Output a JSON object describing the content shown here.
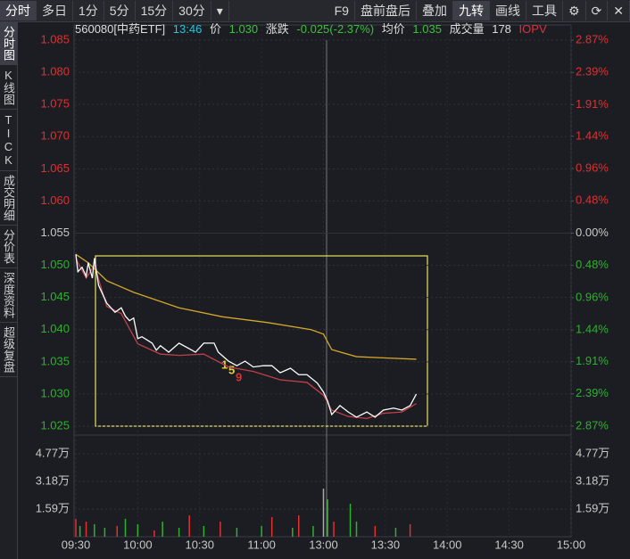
{
  "toolbar": {
    "tabs": [
      "分时",
      "多日",
      "1分",
      "5分",
      "15分",
      "30分"
    ],
    "right": [
      "F9",
      "盘前盘后",
      "叠加",
      "九转",
      "画线",
      "工具"
    ]
  },
  "sidebar": [
    "分时图",
    "K线图",
    "TICK",
    "成交明细",
    "分价表",
    "深度资料",
    "超级复盘"
  ],
  "header": {
    "code": "560080[中药ETF]",
    "time": "13:46",
    "price": "1.030",
    "change_label": "涨跌",
    "change": "-0.025(-2.37%)",
    "avg": "1.035",
    "volume_label": "成交量",
    "volume": "178"
  },
  "chart_data": {
    "type": "line",
    "xlim": [
      0,
      240
    ],
    "xticks": [
      {
        "value": 0,
        "label": "09:30"
      },
      {
        "value": 30,
        "label": "10:00"
      },
      {
        "value": 60,
        "label": "10:30"
      },
      {
        "value": 90,
        "label": "11:00"
      },
      {
        "value": 120,
        "label": "13:00"
      },
      {
        "value": 150,
        "label": "13:30"
      },
      {
        "value": 180,
        "label": "14:00"
      },
      {
        "value": 210,
        "label": "14:30"
      },
      {
        "value": 240,
        "label": "15:00"
      }
    ],
    "ylim": [
      1.025,
      1.085
    ],
    "yticks": [
      {
        "value": 1.085,
        "label": "1.085"
      },
      {
        "value": 1.08,
        "label": "1.080"
      },
      {
        "value": 1.075,
        "label": "1.075"
      },
      {
        "value": 1.07,
        "label": "1.070"
      },
      {
        "value": 1.065,
        "label": "1.065"
      },
      {
        "value": 1.06,
        "label": "1.060"
      },
      {
        "value": 1.055,
        "label": "1.055"
      },
      {
        "value": 1.05,
        "label": "1.050"
      },
      {
        "value": 1.045,
        "label": "1.045"
      },
      {
        "value": 1.04,
        "label": "1.040"
      },
      {
        "value": 1.035,
        "label": "1.035"
      },
      {
        "value": 1.03,
        "label": "1.030"
      },
      {
        "value": 1.025,
        "label": "1.025"
      }
    ],
    "y2lim": [
      -2.87,
      2.87
    ],
    "y2ticks": [
      {
        "value": 2.87,
        "label": "2.87%"
      },
      {
        "value": 2.39,
        "label": "2.39%"
      },
      {
        "value": 1.91,
        "label": "1.91%"
      },
      {
        "value": 1.44,
        "label": "1.44%"
      },
      {
        "value": 0.96,
        "label": "0.96%"
      },
      {
        "value": 0.48,
        "label": "0.48%"
      },
      {
        "value": 0,
        "label": "0.00%"
      },
      {
        "value": -0.48,
        "label": "0.48%"
      },
      {
        "value": -0.96,
        "label": "0.96%"
      },
      {
        "value": -1.44,
        "label": "1.44%"
      },
      {
        "value": -1.91,
        "label": "1.91%"
      },
      {
        "value": -2.39,
        "label": "2.39%"
      },
      {
        "value": -2.87,
        "label": "2.87%"
      }
    ],
    "grid": true,
    "series": [
      {
        "name": "价",
        "color": "#ffffff",
        "x": [
          0,
          1,
          3,
          5,
          6,
          8,
          9,
          11,
          13,
          15,
          17,
          19,
          22,
          24,
          26,
          28,
          30,
          32,
          37,
          39,
          41,
          45,
          50,
          54,
          58,
          62,
          67,
          69,
          74,
          78,
          82,
          86,
          91,
          95,
          99,
          104,
          108,
          112,
          117,
          120,
          122,
          124,
          128,
          132,
          136,
          141,
          145,
          149,
          154,
          158,
          162,
          165
        ],
        "values": [
          1.0517,
          1.049,
          1.0497,
          1.0483,
          1.0504,
          1.048,
          1.0511,
          1.0469,
          1.0455,
          1.0441,
          1.0434,
          1.0427,
          1.0434,
          1.0421,
          1.0414,
          1.0418,
          1.0386,
          1.0389,
          1.0379,
          1.0368,
          1.0375,
          1.0365,
          1.0379,
          1.0372,
          1.0365,
          1.0379,
          1.0379,
          1.0365,
          1.0351,
          1.0344,
          1.0351,
          1.0342,
          1.0344,
          1.0344,
          1.0333,
          1.034,
          1.033,
          1.033,
          1.0317,
          1.0303,
          1.0289,
          1.0268,
          1.0282,
          1.0272,
          1.0264,
          1.0272,
          1.0264,
          1.0275,
          1.0278,
          1.0275,
          1.0282,
          1.03
        ]
      },
      {
        "name": "均价",
        "color": "#d4a62a",
        "x": [
          0,
          6,
          15,
          28,
          50,
          71,
          93,
          114,
          120,
          124,
          136,
          150,
          165
        ],
        "values": [
          1.0517,
          1.0504,
          1.0476,
          1.0458,
          1.0434,
          1.042,
          1.0411,
          1.04,
          1.0393,
          1.0369,
          1.0358,
          1.0356,
          1.0354
        ]
      },
      {
        "name": "IOPV",
        "color": "#c0404a",
        "x": [
          0,
          5,
          9,
          15,
          22,
          30,
          41,
          50,
          62,
          74,
          86,
          99,
          112,
          120,
          124,
          132,
          141,
          149,
          158,
          165
        ],
        "values": [
          1.051,
          1.048,
          1.05,
          1.0436,
          1.0425,
          1.0378,
          1.0362,
          1.036,
          1.0362,
          1.0342,
          1.0335,
          1.0322,
          1.0318,
          1.0298,
          1.0275,
          1.0265,
          1.0262,
          1.027,
          1.0272,
          1.0285
        ]
      }
    ],
    "annotations": [
      "1",
      "5",
      "9"
    ],
    "volume": {
      "ylim": [
        0,
        57500
      ],
      "yticks": [
        {
          "value": 47700,
          "label": "4.77万"
        },
        {
          "value": 31800,
          "label": "3.18万"
        },
        {
          "value": 15900,
          "label": "1.59万"
        }
      ],
      "x": [
        0,
        2,
        5,
        9,
        14,
        20,
        24,
        30,
        38,
        42,
        50,
        55,
        62,
        70,
        78,
        90,
        95,
        105,
        108,
        115,
        120,
        122,
        125,
        133,
        136,
        145,
        155,
        162
      ],
      "values": [
        10300,
        6200,
        8700,
        7200,
        5100,
        6200,
        10300,
        7200,
        3600,
        8700,
        5100,
        12300,
        6200,
        8700,
        5100,
        6200,
        11300,
        5100,
        12300,
        6200,
        27700,
        21500,
        8700,
        19000,
        8700,
        6200,
        5100,
        7200
      ],
      "colors": [
        "#e03030",
        "#30b030",
        "#e03030",
        "#30b030",
        "#30b030",
        "#e03030",
        "#30b030",
        "#30b030",
        "#e03030",
        "#30b030",
        "#30b030",
        "#e03030",
        "#30b030",
        "#e03030",
        "#30b030",
        "#30b030",
        "#e03030",
        "#30b030",
        "#e03030",
        "#30b030",
        "#aaaaaa",
        "#30b030",
        "#e03030",
        "#30b030",
        "#30b030",
        "#e03030",
        "#30b030",
        "#e03030"
      ]
    }
  }
}
